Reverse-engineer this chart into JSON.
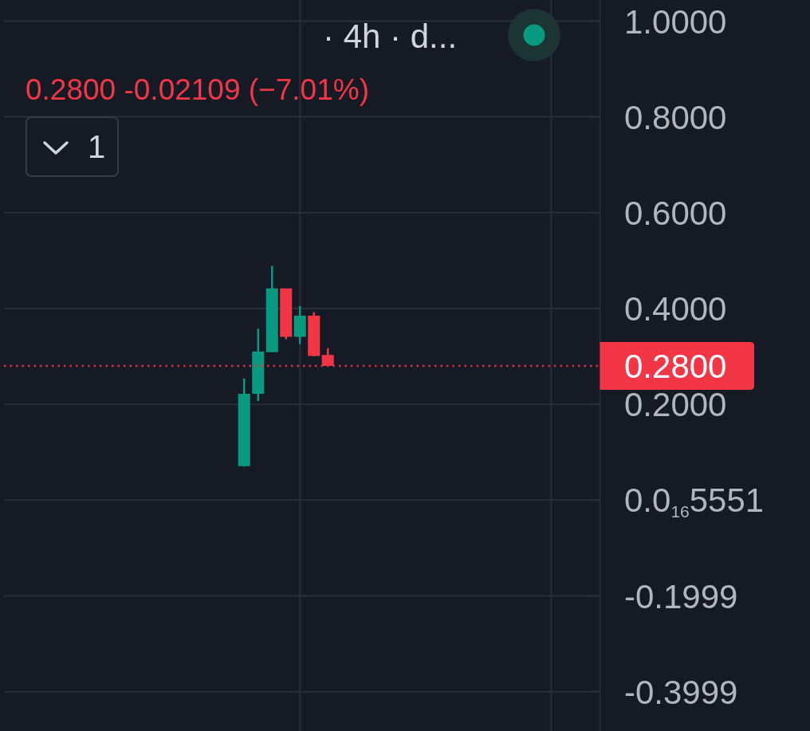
{
  "chart_data": {
    "type": "candlestick",
    "title": "· 4h · d...",
    "subtitle": "0.2800 -0.02109 (−7.01%)",
    "annotations": [
      "1"
    ],
    "categories": [
      null,
      null,
      null,
      null,
      null,
      null,
      null,
      null,
      null,
      null,
      null,
      null,
      null,
      null,
      null,
      null,
      null,
      null,
      null,
      null,
      null,
      null,
      null,
      null,
      null,
      null,
      null,
      null,
      null,
      null,
      null,
      null,
      null,
      null,
      null,
      null,
      null,
      null,
      null,
      null,
      null,
      null,
      null
    ],
    "ohlc": [
      null,
      null,
      null,
      null,
      null,
      null,
      null,
      null,
      null,
      null,
      null,
      null,
      null,
      null,
      null,
      null,
      null,
      [
        0.071,
        0.254,
        0.07,
        0.222
      ],
      [
        0.222,
        0.358,
        0.207,
        0.31
      ],
      [
        0.309,
        0.489,
        0.309,
        0.442
      ],
      [
        0.442,
        0.442,
        0.336,
        0.341
      ],
      [
        0.341,
        0.405,
        0.326,
        0.385
      ],
      [
        0.385,
        0.392,
        0.3,
        0.301
      ],
      [
        0.303,
        0.317,
        0.28,
        0.28
      ],
      null,
      null,
      null,
      null,
      null,
      null,
      null,
      null,
      null,
      null,
      null,
      null,
      null,
      null,
      null,
      null,
      null,
      null,
      null
    ],
    "colors": [
      null,
      null,
      null,
      null,
      null,
      null,
      null,
      null,
      null,
      null,
      null,
      null,
      null,
      null,
      null,
      null,
      null,
      "#089981",
      "#089981",
      "#089981",
      "#f23645",
      "#089981",
      "#f23645",
      "#f23645",
      null,
      null,
      null,
      null,
      null,
      null,
      null,
      null,
      null,
      null,
      null,
      null,
      null,
      null,
      null,
      null,
      null,
      null,
      null
    ],
    "ylim": [
      -0.482,
      1.044
    ],
    "yticks": [
      -0.3999,
      -0.1999,
      {
        "value": 5.551e-17,
        "label": "0.0$_{16}$5551"
      },
      {
        "value": 0.2,
        "label": "0.2000"
      },
      {
        "value": 0.4,
        "label": "0.4000"
      },
      {
        "value": 0.6,
        "label": "0.6000"
      },
      {
        "value": 0.8,
        "label": "0.8000"
      },
      {
        "value": 1,
        "label": "1.0000"
      }
    ],
    "grid": "y",
    "tick_labels": "y",
    "ref_lines": [
      {
        "axis": "y",
        "value": 0.28,
        "label": "0.2800",
        "color": "#f23645",
        "line_style": "dotted"
      }
    ]
  }
}
